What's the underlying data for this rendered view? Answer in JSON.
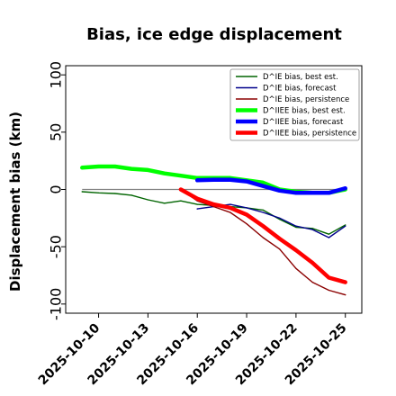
{
  "chart_data": {
    "type": "line",
    "title": "Bias, ice edge displacement",
    "xlabel": "",
    "ylabel": "Displacement bias (km)",
    "x_range": [
      "2025-10-08",
      "2025-10-26"
    ],
    "ylim": [
      -108,
      108
    ],
    "y_ticks": [
      {
        "value": 100,
        "label": "100"
      },
      {
        "value": 50,
        "label": "50"
      },
      {
        "value": 0,
        "label": "0"
      },
      {
        "value": -50,
        "label": "-50"
      },
      {
        "value": -100,
        "label": "-100"
      }
    ],
    "x_ticks": [
      {
        "date": "2025-10-10",
        "label": "2025-10-10",
        "color": "#000000"
      },
      {
        "date": "2025-10-13",
        "label": "2025-10-13",
        "color": "#000000"
      },
      {
        "date": "2025-10-16",
        "label": "2025-10-16",
        "color": "#228b22"
      },
      {
        "date": "2025-10-19",
        "label": "2025-10-19",
        "color": "#000000"
      },
      {
        "date": "2025-10-22",
        "label": "2025-10-22",
        "color": "#000000"
      },
      {
        "date": "2025-10-25",
        "label": "2025-10-25",
        "color": "#000000"
      }
    ],
    "zero_line": {
      "y": 0,
      "color": "#808080"
    },
    "grid": false,
    "legend_position": "top-right",
    "series": [
      {
        "name": "D^IE bias, best est.",
        "color": "#006400",
        "width": 1.4,
        "x": [
          "2025-10-09",
          "2025-10-10",
          "2025-10-11",
          "2025-10-12",
          "2025-10-13",
          "2025-10-14",
          "2025-10-15",
          "2025-10-16",
          "2025-10-17",
          "2025-10-18",
          "2025-10-19",
          "2025-10-20",
          "2025-10-21",
          "2025-10-22",
          "2025-10-23",
          "2025-10-24",
          "2025-10-25"
        ],
        "y": [
          -2,
          -3,
          -3.5,
          -5,
          -9,
          -12,
          -10,
          -13,
          -14,
          -15,
          -16,
          -18,
          -26,
          -33,
          -34,
          -39,
          -31
        ]
      },
      {
        "name": "D^IE bias, forecast",
        "color": "#00008b",
        "width": 1.4,
        "x": [
          "2025-10-16",
          "2025-10-17",
          "2025-10-18",
          "2025-10-19",
          "2025-10-20",
          "2025-10-21",
          "2025-10-22",
          "2025-10-23",
          "2025-10-24",
          "2025-10-25"
        ],
        "y": [
          -17,
          -15,
          -13,
          -16,
          -20,
          -25,
          -32,
          -35,
          -42,
          -32
        ]
      },
      {
        "name": "D^IE bias, persistence",
        "color": "#8b0000",
        "width": 1.4,
        "x": [
          "2025-10-15",
          "2025-10-16",
          "2025-10-17",
          "2025-10-18",
          "2025-10-19",
          "2025-10-20",
          "2025-10-21",
          "2025-10-22",
          "2025-10-23",
          "2025-10-24",
          "2025-10-25"
        ],
        "y": [
          0,
          -10,
          -15,
          -20,
          -30,
          -42,
          -52,
          -69,
          -81,
          -88,
          -92
        ]
      },
      {
        "name": "D^IIEE bias, best est.",
        "color": "#00ff00",
        "width": 4.5,
        "x": [
          "2025-10-09",
          "2025-10-10",
          "2025-10-11",
          "2025-10-12",
          "2025-10-13",
          "2025-10-14",
          "2025-10-15",
          "2025-10-16",
          "2025-10-17",
          "2025-10-18",
          "2025-10-19",
          "2025-10-20",
          "2025-10-21",
          "2025-10-22",
          "2025-10-23",
          "2025-10-24",
          "2025-10-25"
        ],
        "y": [
          19,
          20,
          20,
          18,
          17,
          14,
          12,
          10,
          10,
          10,
          8,
          6,
          0,
          -2,
          -3,
          -3,
          0
        ]
      },
      {
        "name": "D^IIEE bias, forecast",
        "color": "#0000ff",
        "width": 4.5,
        "x": [
          "2025-10-16",
          "2025-10-17",
          "2025-10-18",
          "2025-10-19",
          "2025-10-20",
          "2025-10-21",
          "2025-10-22",
          "2025-10-23",
          "2025-10-24",
          "2025-10-25"
        ],
        "y": [
          8,
          8.5,
          8.5,
          7,
          3,
          -1,
          -3,
          -3,
          -3,
          1
        ]
      },
      {
        "name": "D^IIEE bias, persistence",
        "color": "#ff0000",
        "width": 4.5,
        "x": [
          "2025-10-15",
          "2025-10-16",
          "2025-10-17",
          "2025-10-18",
          "2025-10-19",
          "2025-10-20",
          "2025-10-21",
          "2025-10-22",
          "2025-10-23",
          "2025-10-24",
          "2025-10-25"
        ],
        "y": [
          0,
          -8,
          -13,
          -16,
          -22,
          -32,
          -43,
          -53,
          -64,
          -77,
          -81
        ]
      }
    ]
  }
}
